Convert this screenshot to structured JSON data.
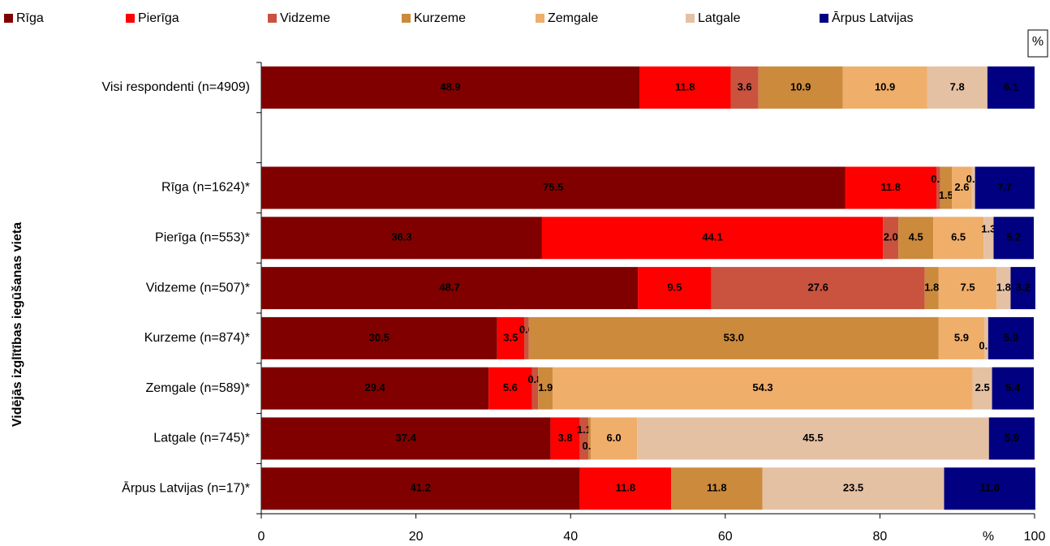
{
  "chart_data": {
    "type": "stacked_bar_horizontal",
    "y_axis_label": "Vidējās izglītības iegūšanas vieta",
    "unit": "%",
    "categories": [
      "Visi respondenti (n=4909)",
      null,
      "Rīga (n=1624)*",
      "Pierīga (n=553)*",
      "Vidzeme (n=507)*",
      "Kurzeme (n=874)*",
      "Zemgale (n=589)*",
      "Latgale (n=745)*",
      "Ārpus Latvijas (n=17)*"
    ],
    "series": [
      {
        "name": "Rīga",
        "color": "#800000",
        "values": [
          48.9,
          null,
          75.5,
          36.3,
          48.7,
          30.5,
          29.4,
          37.4,
          41.2
        ]
      },
      {
        "name": "Pierīga",
        "color": "#ff0000",
        "values": [
          11.8,
          null,
          11.8,
          44.1,
          9.5,
          3.5,
          5.6,
          3.8,
          11.8
        ]
      },
      {
        "name": "Vidzeme",
        "color": "#c9533f",
        "values": [
          3.6,
          null,
          0.5,
          2.0,
          27.6,
          0.6,
          0.8,
          1.1,
          null
        ],
        "value_labels": [
          "3.6",
          null,
          "0.5",
          "2.0",
          "27.6",
          "0.6",
          "0.8",
          "1.1",
          null
        ]
      },
      {
        "name": "Kurzeme",
        "color": "#cc8a3c",
        "values": [
          10.9,
          null,
          1.5,
          4.5,
          1.8,
          53.0,
          1.9,
          0.3,
          11.8
        ],
        "value_labels": [
          "10.9",
          null,
          "1.5",
          "4.5",
          "1.8",
          "53.0",
          "1.9",
          "0.3",
          "11.8"
        ]
      },
      {
        "name": "Zemgale",
        "color": "#efae6a",
        "values": [
          10.9,
          null,
          2.6,
          6.5,
          7.5,
          5.9,
          54.3,
          6.0,
          null
        ],
        "value_labels": [
          "10.9",
          null,
          "2.6",
          "6.5",
          "7.5",
          "5.9",
          "54.3",
          "6.0",
          null
        ]
      },
      {
        "name": "Latgale",
        "color": "#e5c1a3",
        "values": [
          7.8,
          null,
          0.4,
          1.3,
          1.8,
          0.5,
          2.5,
          45.5,
          23.5
        ]
      },
      {
        "name": "Ārpus Latvijas",
        "color": "#000080",
        "values": [
          6.1,
          null,
          7.7,
          5.2,
          3.2,
          5.9,
          5.4,
          5.9,
          11.8
        ]
      }
    ],
    "xlim": [
      0,
      100
    ],
    "xticks": [
      0,
      20,
      40,
      60,
      80,
      100
    ]
  }
}
